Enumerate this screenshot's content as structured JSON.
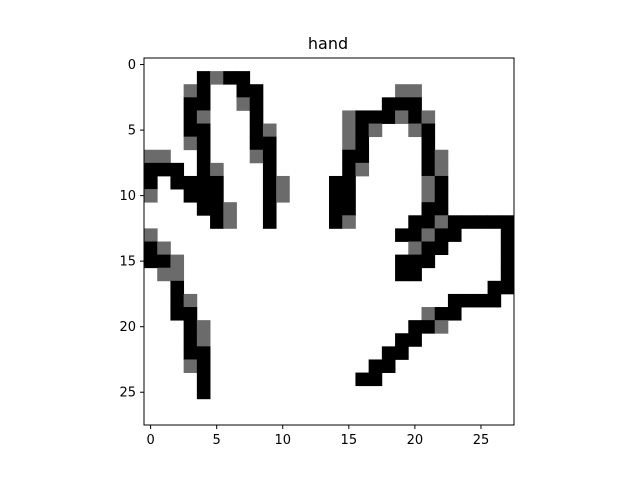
{
  "chart_data": {
    "type": "heatmap",
    "title": "hand",
    "xlabel": "",
    "ylabel": "",
    "xlim": [
      -0.5,
      27.5
    ],
    "ylim": [
      27.5,
      -0.5
    ],
    "x_ticks": [
      0,
      5,
      10,
      15,
      20,
      25
    ],
    "y_ticks": [
      0,
      5,
      10,
      15,
      20,
      25
    ],
    "colormap": "gray_r",
    "value_levels": {
      "0": "#ffffff",
      "1": "#6b6b6b",
      "2": "#000000"
    },
    "cells": [
      [
        0,
        0,
        0,
        0,
        0,
        0,
        0,
        0,
        0,
        0,
        0,
        0,
        0,
        0,
        0,
        0,
        0,
        0,
        0,
        0,
        0,
        0,
        0,
        0,
        0,
        0,
        0,
        0
      ],
      [
        0,
        0,
        0,
        0,
        2,
        1,
        2,
        2,
        0,
        0,
        0,
        0,
        0,
        0,
        0,
        0,
        0,
        0,
        0,
        0,
        0,
        0,
        0,
        0,
        0,
        0,
        0,
        0
      ],
      [
        0,
        0,
        0,
        1,
        2,
        0,
        0,
        2,
        2,
        0,
        0,
        0,
        0,
        0,
        0,
        0,
        0,
        0,
        0,
        1,
        1,
        0,
        0,
        0,
        0,
        0,
        0,
        0
      ],
      [
        0,
        0,
        0,
        2,
        2,
        0,
        0,
        1,
        2,
        0,
        0,
        0,
        0,
        0,
        0,
        0,
        0,
        0,
        2,
        2,
        2,
        0,
        0,
        0,
        0,
        0,
        0,
        0
      ],
      [
        0,
        0,
        0,
        2,
        1,
        0,
        0,
        0,
        2,
        0,
        0,
        0,
        0,
        0,
        0,
        1,
        2,
        2,
        2,
        1,
        2,
        1,
        0,
        0,
        0,
        0,
        0,
        0
      ],
      [
        0,
        0,
        0,
        2,
        2,
        0,
        0,
        0,
        2,
        1,
        0,
        0,
        0,
        0,
        0,
        1,
        2,
        1,
        0,
        0,
        1,
        2,
        0,
        0,
        0,
        0,
        0,
        0
      ],
      [
        0,
        0,
        0,
        1,
        2,
        0,
        0,
        0,
        2,
        2,
        0,
        0,
        0,
        0,
        0,
        1,
        2,
        0,
        0,
        0,
        0,
        2,
        0,
        0,
        0,
        0,
        0,
        0
      ],
      [
        1,
        1,
        0,
        0,
        2,
        0,
        0,
        0,
        1,
        2,
        0,
        0,
        0,
        0,
        0,
        2,
        2,
        0,
        0,
        0,
        0,
        2,
        1,
        0,
        0,
        0,
        0,
        0
      ],
      [
        2,
        2,
        2,
        0,
        2,
        1,
        0,
        0,
        0,
        2,
        0,
        0,
        0,
        0,
        0,
        2,
        1,
        0,
        0,
        0,
        0,
        2,
        1,
        0,
        0,
        0,
        0,
        0
      ],
      [
        2,
        0,
        2,
        2,
        2,
        2,
        0,
        0,
        0,
        2,
        1,
        0,
        0,
        0,
        2,
        2,
        0,
        0,
        0,
        0,
        0,
        1,
        2,
        0,
        0,
        0,
        0,
        0
      ],
      [
        1,
        0,
        0,
        2,
        2,
        2,
        0,
        0,
        0,
        2,
        1,
        0,
        0,
        0,
        2,
        2,
        0,
        0,
        0,
        0,
        0,
        1,
        2,
        0,
        0,
        0,
        0,
        0
      ],
      [
        0,
        0,
        0,
        0,
        2,
        2,
        1,
        0,
        0,
        2,
        0,
        0,
        0,
        0,
        2,
        2,
        0,
        0,
        0,
        0,
        0,
        2,
        2,
        0,
        0,
        0,
        0,
        0
      ],
      [
        0,
        0,
        0,
        0,
        0,
        2,
        1,
        0,
        0,
        2,
        0,
        0,
        0,
        0,
        2,
        1,
        0,
        0,
        0,
        0,
        2,
        2,
        1,
        2,
        2,
        2,
        2,
        2
      ],
      [
        1,
        0,
        0,
        0,
        0,
        0,
        0,
        0,
        0,
        0,
        0,
        0,
        0,
        0,
        0,
        0,
        0,
        0,
        0,
        2,
        2,
        1,
        2,
        2,
        0,
        0,
        0,
        2
      ],
      [
        2,
        1,
        0,
        0,
        0,
        0,
        0,
        0,
        0,
        0,
        0,
        0,
        0,
        0,
        0,
        0,
        0,
        0,
        0,
        0,
        1,
        2,
        2,
        0,
        0,
        0,
        0,
        2
      ],
      [
        2,
        2,
        1,
        0,
        0,
        0,
        0,
        0,
        0,
        0,
        0,
        0,
        0,
        0,
        0,
        0,
        0,
        0,
        0,
        2,
        2,
        2,
        0,
        0,
        0,
        0,
        0,
        2
      ],
      [
        0,
        1,
        1,
        0,
        0,
        0,
        0,
        0,
        0,
        0,
        0,
        0,
        0,
        0,
        0,
        0,
        0,
        0,
        0,
        2,
        2,
        0,
        0,
        0,
        0,
        0,
        0,
        2
      ],
      [
        0,
        0,
        2,
        0,
        0,
        0,
        0,
        0,
        0,
        0,
        0,
        0,
        0,
        0,
        0,
        0,
        0,
        0,
        0,
        0,
        0,
        0,
        0,
        0,
        0,
        0,
        2,
        2
      ],
      [
        0,
        0,
        2,
        1,
        0,
        0,
        0,
        0,
        0,
        0,
        0,
        0,
        0,
        0,
        0,
        0,
        0,
        0,
        0,
        0,
        0,
        0,
        0,
        2,
        2,
        2,
        2,
        0
      ],
      [
        0,
        0,
        2,
        2,
        0,
        0,
        0,
        0,
        0,
        0,
        0,
        0,
        0,
        0,
        0,
        0,
        0,
        0,
        0,
        0,
        0,
        1,
        2,
        2,
        0,
        0,
        0,
        0
      ],
      [
        0,
        0,
        0,
        2,
        1,
        0,
        0,
        0,
        0,
        0,
        0,
        0,
        0,
        0,
        0,
        0,
        0,
        0,
        0,
        0,
        2,
        2,
        1,
        0,
        0,
        0,
        0,
        0
      ],
      [
        0,
        0,
        0,
        2,
        1,
        0,
        0,
        0,
        0,
        0,
        0,
        0,
        0,
        0,
        0,
        0,
        0,
        0,
        0,
        2,
        2,
        0,
        0,
        0,
        0,
        0,
        0,
        0
      ],
      [
        0,
        0,
        0,
        2,
        2,
        0,
        0,
        0,
        0,
        0,
        0,
        0,
        0,
        0,
        0,
        0,
        0,
        0,
        2,
        2,
        0,
        0,
        0,
        0,
        0,
        0,
        0,
        0
      ],
      [
        0,
        0,
        0,
        1,
        2,
        0,
        0,
        0,
        0,
        0,
        0,
        0,
        0,
        0,
        0,
        0,
        0,
        2,
        2,
        0,
        0,
        0,
        0,
        0,
        0,
        0,
        0,
        0
      ],
      [
        0,
        0,
        0,
        0,
        2,
        0,
        0,
        0,
        0,
        0,
        0,
        0,
        0,
        0,
        0,
        0,
        2,
        2,
        0,
        0,
        0,
        0,
        0,
        0,
        0,
        0,
        0,
        0
      ],
      [
        0,
        0,
        0,
        0,
        2,
        0,
        0,
        0,
        0,
        0,
        0,
        0,
        0,
        0,
        0,
        0,
        0,
        0,
        0,
        0,
        0,
        0,
        0,
        0,
        0,
        0,
        0,
        0
      ],
      [
        0,
        0,
        0,
        0,
        0,
        0,
        0,
        0,
        0,
        0,
        0,
        0,
        0,
        0,
        0,
        0,
        0,
        0,
        0,
        0,
        0,
        0,
        0,
        0,
        0,
        0,
        0,
        0
      ],
      [
        0,
        0,
        0,
        0,
        0,
        0,
        0,
        0,
        0,
        0,
        0,
        0,
        0,
        0,
        0,
        0,
        0,
        0,
        0,
        0,
        0,
        0,
        0,
        0,
        0,
        0,
        0,
        0
      ]
    ]
  }
}
